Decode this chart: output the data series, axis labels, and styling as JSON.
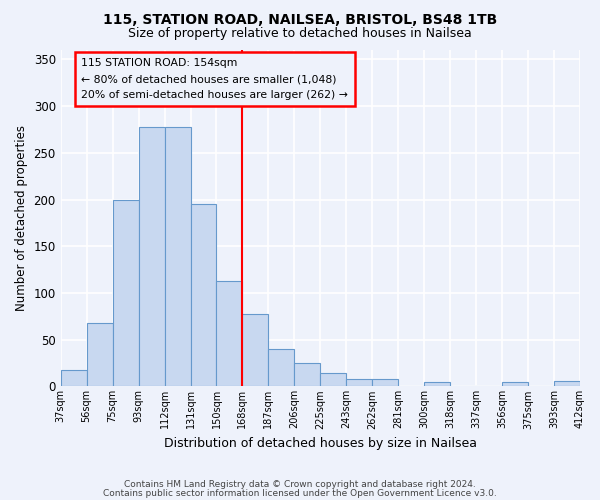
{
  "title": "115, STATION ROAD, NAILSEA, BRISTOL, BS48 1TB",
  "subtitle": "Size of property relative to detached houses in Nailsea",
  "xlabel": "Distribution of detached houses by size in Nailsea",
  "ylabel": "Number of detached properties",
  "bar_labels": [
    "37sqm",
    "56sqm",
    "75sqm",
    "93sqm",
    "112sqm",
    "131sqm",
    "150sqm",
    "168sqm",
    "187sqm",
    "206sqm",
    "225sqm",
    "243sqm",
    "262sqm",
    "281sqm",
    "300sqm",
    "318sqm",
    "337sqm",
    "356sqm",
    "375sqm",
    "393sqm",
    "412sqm"
  ],
  "bar_values": [
    18,
    68,
    200,
    278,
    278,
    195,
    113,
    78,
    40,
    25,
    14,
    8,
    8,
    0,
    5,
    0,
    0,
    5,
    0,
    6
  ],
  "bar_color": "#c8d8f0",
  "bar_edge_color": "#6699cc",
  "annotation_line1": "115 STATION ROAD: 154sqm",
  "annotation_line2": "← 80% of detached houses are smaller (1,048)",
  "annotation_line3": "20% of semi-detached houses are larger (262) →",
  "vline_color": "red",
  "footer1": "Contains HM Land Registry data © Crown copyright and database right 2024.",
  "footer2": "Contains public sector information licensed under the Open Government Licence v3.0.",
  "ylim": [
    0,
    360
  ],
  "yticks": [
    0,
    50,
    100,
    150,
    200,
    250,
    300,
    350
  ],
  "background_color": "#eef2fb",
  "grid_color": "#ffffff",
  "box_edge_color": "red",
  "vline_position": 6.5
}
